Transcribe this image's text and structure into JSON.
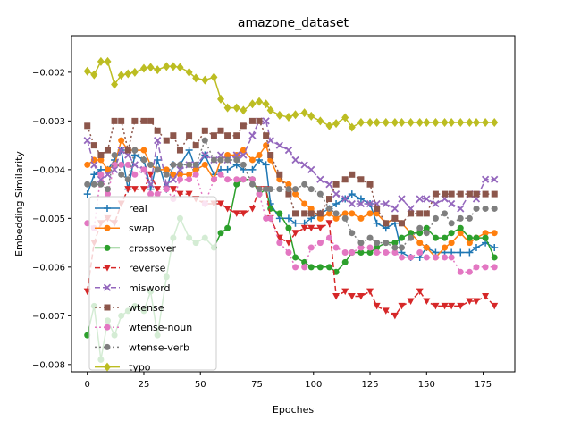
{
  "chart_data": {
    "type": "line",
    "title": "amazone_dataset",
    "xlabel": "Epoches",
    "ylabel": "Embedding Similarity",
    "xlim": [
      -7,
      189
    ],
    "ylim": [
      -0.00815,
      -0.00125
    ],
    "xticks": [
      0,
      25,
      50,
      75,
      100,
      125,
      150,
      175
    ],
    "xtick_labels": [
      "0",
      "25",
      "50",
      "75",
      "100",
      "125",
      "150",
      "175"
    ],
    "yticks": [
      -0.008,
      -0.007,
      -0.006,
      -0.005,
      -0.004,
      -0.003,
      -0.002
    ],
    "ytick_labels": [
      "−0.008",
      "−0.007",
      "−0.006",
      "−0.005",
      "−0.004",
      "−0.003",
      "−0.002"
    ],
    "legend_position": "lower-left",
    "x": [
      0,
      3,
      6,
      9,
      12,
      15,
      18,
      21,
      25,
      28,
      31,
      35,
      38,
      41,
      45,
      48,
      52,
      56,
      59,
      62,
      66,
      69,
      73,
      76,
      79,
      81,
      85,
      89,
      92,
      96,
      99,
      103,
      107,
      110,
      114,
      117,
      121,
      125,
      128,
      132,
      136,
      139,
      143,
      147,
      150,
      154,
      158,
      161,
      165,
      169,
      172,
      176,
      180
    ],
    "series": [
      {
        "name": "real",
        "color": "#1f77b4",
        "dash": "",
        "marker": "plus",
        "values": [
          -0.0045,
          -0.0041,
          -0.004,
          -0.004,
          -0.0038,
          -0.0036,
          -0.0044,
          -0.0037,
          -0.0038,
          -0.0044,
          -0.0038,
          -0.0044,
          -0.0039,
          -0.0039,
          -0.0036,
          -0.004,
          -0.0037,
          -0.0041,
          -0.004,
          -0.004,
          -0.0039,
          -0.004,
          -0.004,
          -0.0038,
          -0.0039,
          -0.0047,
          -0.005,
          -0.005,
          -0.0051,
          -0.0051,
          -0.005,
          -0.0049,
          -0.0048,
          -0.0047,
          -0.0046,
          -0.0045,
          -0.0046,
          -0.0047,
          -0.0051,
          -0.0052,
          -0.0051,
          -0.0057,
          -0.0058,
          -0.0058,
          -0.0056,
          -0.0057,
          -0.0057,
          -0.0057,
          -0.0057,
          -0.0057,
          -0.0056,
          -0.0055,
          -0.0056
        ]
      },
      {
        "name": "swap",
        "color": "#ff7f0e",
        "dash": "",
        "marker": "circle",
        "values": [
          -0.0039,
          -0.0038,
          -0.0038,
          -0.004,
          -0.0039,
          -0.0034,
          -0.0036,
          -0.0036,
          -0.0036,
          -0.0039,
          -0.004,
          -0.004,
          -0.0041,
          -0.0041,
          -0.0041,
          -0.004,
          -0.0039,
          -0.0042,
          -0.0038,
          -0.0037,
          -0.0037,
          -0.0036,
          -0.0038,
          -0.0037,
          -0.0035,
          -0.0038,
          -0.0042,
          -0.0043,
          -0.0045,
          -0.0047,
          -0.0048,
          -0.005,
          -0.0049,
          -0.005,
          -0.0049,
          -0.0049,
          -0.005,
          -0.0049,
          -0.0049,
          -0.0051,
          -0.005,
          -0.0051,
          -0.0053,
          -0.0055,
          -0.0056,
          -0.0058,
          -0.0056,
          -0.0055,
          -0.0053,
          -0.0055,
          -0.0054,
          -0.0053,
          -0.0053
        ]
      },
      {
        "name": "crossover",
        "color": "#2ca02c",
        "dash": "",
        "marker": "circle",
        "values": [
          -0.0074,
          -0.0068,
          -0.0079,
          -0.0071,
          -0.0074,
          -0.007,
          -0.0069,
          -0.0068,
          -0.0069,
          -0.0065,
          -0.0074,
          -0.0062,
          -0.0054,
          -0.005,
          -0.0054,
          -0.0055,
          -0.0054,
          -0.0056,
          -0.0053,
          -0.0052,
          -0.0043,
          -0.0042,
          -0.0042,
          -0.0045,
          -0.0044,
          -0.0048,
          -0.0049,
          -0.0052,
          -0.0058,
          -0.0059,
          -0.006,
          -0.006,
          -0.006,
          -0.0061,
          -0.0059,
          -0.0057,
          -0.0057,
          -0.0057,
          -0.0056,
          -0.0055,
          -0.0055,
          -0.0054,
          -0.0053,
          -0.0053,
          -0.0052,
          -0.0054,
          -0.0054,
          -0.0053,
          -0.0052,
          -0.0054,
          -0.0054,
          -0.0054,
          -0.0058
        ]
      },
      {
        "name": "reverse",
        "color": "#d62728",
        "dash": "6,3",
        "marker": "triangle-down",
        "values": [
          -0.0065,
          -0.0055,
          -0.0051,
          -0.005,
          -0.0051,
          -0.0047,
          -0.0044,
          -0.0044,
          -0.0044,
          -0.0041,
          -0.0044,
          -0.0044,
          -0.0044,
          -0.0045,
          -0.0045,
          -0.0046,
          -0.0047,
          -0.0047,
          -0.0047,
          -0.0048,
          -0.0049,
          -0.0049,
          -0.0048,
          -0.0044,
          -0.0044,
          -0.005,
          -0.0054,
          -0.0055,
          -0.0053,
          -0.0052,
          -0.0052,
          -0.0052,
          -0.0051,
          -0.0066,
          -0.0065,
          -0.0066,
          -0.0066,
          -0.0065,
          -0.0068,
          -0.0069,
          -0.007,
          -0.0068,
          -0.0067,
          -0.0065,
          -0.0067,
          -0.0068,
          -0.0068,
          -0.0068,
          -0.0068,
          -0.0067,
          -0.0067,
          -0.0066,
          -0.0068
        ]
      },
      {
        "name": "misword",
        "color": "#9467bd",
        "dash": "6,3",
        "marker": "x",
        "values": [
          -0.0034,
          -0.0039,
          -0.0042,
          -0.0041,
          -0.004,
          -0.0036,
          -0.0037,
          -0.0039,
          -0.004,
          -0.0043,
          -0.0034,
          -0.0043,
          -0.0042,
          -0.004,
          -0.0039,
          -0.0039,
          -0.0037,
          -0.0038,
          -0.0037,
          -0.0038,
          -0.0037,
          -0.0037,
          -0.0033,
          -0.003,
          -0.003,
          -0.0034,
          -0.0035,
          -0.0036,
          -0.0038,
          -0.0039,
          -0.004,
          -0.0042,
          -0.0043,
          -0.0045,
          -0.0046,
          -0.0047,
          -0.0047,
          -0.0047,
          -0.0047,
          -0.0047,
          -0.0048,
          -0.0046,
          -0.0048,
          -0.0046,
          -0.0046,
          -0.0047,
          -0.0046,
          -0.0047,
          -0.0048,
          -0.0045,
          -0.0046,
          -0.0042,
          -0.0042
        ]
      },
      {
        "name": "wtense",
        "color": "#8c564b",
        "dash": "2,3",
        "marker": "square",
        "values": [
          -0.0031,
          -0.0035,
          -0.0037,
          -0.0036,
          -0.003,
          -0.003,
          -0.0036,
          -0.003,
          -0.003,
          -0.003,
          -0.0032,
          -0.0034,
          -0.0033,
          -0.0036,
          -0.0033,
          -0.0035,
          -0.0032,
          -0.0033,
          -0.0032,
          -0.0033,
          -0.0033,
          -0.0031,
          -0.003,
          -0.003,
          -0.0033,
          -0.0037,
          -0.0041,
          -0.0045,
          -0.0049,
          -0.0049,
          -0.0049,
          -0.0049,
          -0.0046,
          -0.0043,
          -0.0042,
          -0.0041,
          -0.0042,
          -0.0043,
          -0.0048,
          -0.0051,
          -0.005,
          -0.0051,
          -0.0049,
          -0.0049,
          -0.0049,
          -0.0045,
          -0.0045,
          -0.0045,
          -0.0045,
          -0.0045,
          -0.0045,
          -0.0045,
          -0.0045
        ]
      },
      {
        "name": "wtense-noun",
        "color": "#e377c2",
        "dash": "2,3",
        "marker": "circle",
        "values": [
          -0.0051,
          -0.0052,
          -0.0041,
          -0.0045,
          -0.0039,
          -0.0039,
          -0.0039,
          -0.0041,
          -0.004,
          -0.0045,
          -0.0045,
          -0.0044,
          -0.0046,
          -0.0042,
          -0.0042,
          -0.0041,
          -0.0047,
          -0.0042,
          -0.0041,
          -0.0042,
          -0.0042,
          -0.0042,
          -0.0042,
          -0.0045,
          -0.005,
          -0.005,
          -0.0055,
          -0.0057,
          -0.006,
          -0.006,
          -0.0056,
          -0.0055,
          -0.0054,
          -0.0056,
          -0.0057,
          -0.0057,
          -0.0056,
          -0.0056,
          -0.0057,
          -0.0057,
          -0.0057,
          -0.0058,
          -0.0058,
          -0.0057,
          -0.0058,
          -0.0058,
          -0.0058,
          -0.0058,
          -0.0061,
          -0.0061,
          -0.006,
          -0.006,
          -0.006
        ]
      },
      {
        "name": "wtense-verb",
        "color": "#7f7f7f",
        "dash": "2,3",
        "marker": "circle",
        "values": [
          -0.0043,
          -0.0043,
          -0.0043,
          -0.0044,
          -0.0037,
          -0.0041,
          -0.0042,
          -0.0036,
          -0.0038,
          -0.0039,
          -0.004,
          -0.0041,
          -0.0039,
          -0.0039,
          -0.0039,
          -0.0039,
          -0.0034,
          -0.0038,
          -0.0038,
          -0.0038,
          -0.0038,
          -0.0039,
          -0.0043,
          -0.0044,
          -0.0044,
          -0.0044,
          -0.0044,
          -0.0044,
          -0.0044,
          -0.0043,
          -0.0044,
          -0.0045,
          -0.0048,
          -0.0049,
          -0.005,
          -0.0053,
          -0.0055,
          -0.0054,
          -0.0055,
          -0.0055,
          -0.0056,
          -0.0056,
          -0.0054,
          -0.0052,
          -0.0053,
          -0.005,
          -0.0049,
          -0.0051,
          -0.005,
          -0.005,
          -0.0048,
          -0.0048,
          -0.0048
        ]
      },
      {
        "name": "typo",
        "color": "#bcbd22",
        "dash": "",
        "marker": "diamond",
        "values": [
          -0.00198,
          -0.00205,
          -0.00178,
          -0.00178,
          -0.00225,
          -0.00206,
          -0.00203,
          -0.002,
          -0.00192,
          -0.0019,
          -0.00195,
          -0.00188,
          -0.00188,
          -0.0019,
          -0.002,
          -0.00212,
          -0.00216,
          -0.0021,
          -0.00255,
          -0.00273,
          -0.00273,
          -0.00278,
          -0.00265,
          -0.0026,
          -0.00265,
          -0.00278,
          -0.00288,
          -0.00292,
          -0.00287,
          -0.00283,
          -0.0029,
          -0.003,
          -0.0031,
          -0.00305,
          -0.00293,
          -0.00313,
          -0.00303,
          -0.00303,
          -0.00303,
          -0.00303,
          -0.00303,
          -0.00303,
          -0.00303,
          -0.00303,
          -0.00303,
          -0.00303,
          -0.00303,
          -0.00303,
          -0.00303,
          -0.00303,
          -0.00303,
          -0.00303,
          -0.00303
        ]
      }
    ]
  }
}
